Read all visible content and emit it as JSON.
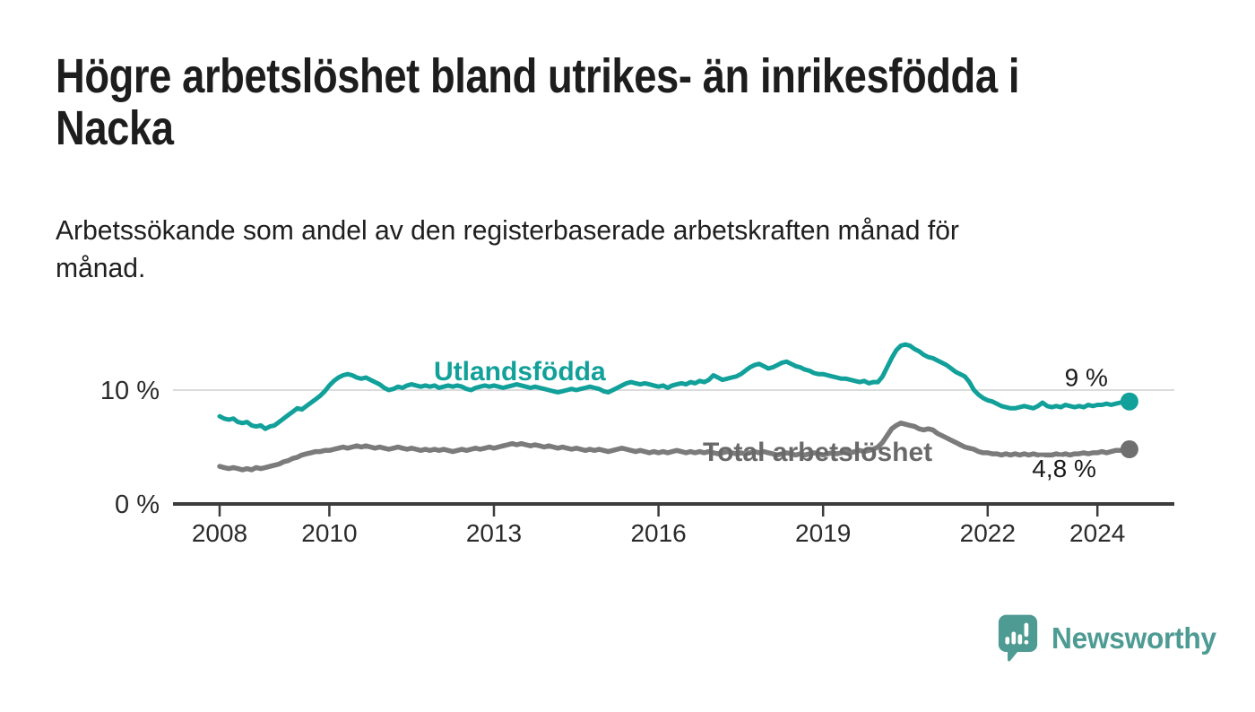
{
  "header": {
    "title": "Högre arbetslöshet bland utrikes- än inrikesfödda i\nNacka",
    "subtitle": "Arbetssökande som andel av den registerbaserade arbetskraften månad för\nmånad."
  },
  "footer": {
    "brand": "Newsworthy"
  },
  "colors": {
    "accent_teal": "#12a09a",
    "series_gray": "#7b7b7b",
    "gray_label": "#696969",
    "gray_dot": "#6f6f6f",
    "logo_teal": "#4d9b93",
    "title_text": "#1d1d1d",
    "axis_text": "#2b2b2b",
    "end_label_text": "#1a1a1a",
    "gridline": "#dcdcdc",
    "axis_line": "#3c3c3c"
  },
  "chart_data": {
    "type": "line",
    "title": "Högre arbetslöshet bland utrikes- än inrikesfödda i Nacka",
    "subtitle": "Arbetssökande som andel av den registerbaserade arbetskraften månad för månad.",
    "frequency": "monthly",
    "start": "2008-01",
    "end": "2024-08",
    "unit": "percent",
    "xlabel": "",
    "ylabel": "",
    "ylim": [
      0,
      15
    ],
    "grid": "single horizontal gridline at 10 %",
    "legend_position": "inline labels next to lines",
    "yticks": [
      {
        "value": 0,
        "label": "0 %"
      },
      {
        "value": 10,
        "label": "10 %"
      }
    ],
    "xticks": [
      2008,
      2010,
      2013,
      2016,
      2019,
      2022,
      2024
    ],
    "series": [
      {
        "name": "Utlandsfödda",
        "color": "#12a09a",
        "end_label": "9 %",
        "end_value": 9.0,
        "values": [
          7.7,
          7.5,
          7.4,
          7.5,
          7.2,
          7.1,
          7.2,
          6.9,
          6.8,
          6.9,
          6.6,
          6.8,
          6.9,
          7.2,
          7.5,
          7.8,
          8.1,
          8.4,
          8.3,
          8.6,
          8.9,
          9.2,
          9.5,
          9.9,
          10.4,
          10.8,
          11.1,
          11.3,
          11.4,
          11.3,
          11.1,
          11.0,
          11.1,
          10.9,
          10.7,
          10.5,
          10.2,
          10.0,
          10.1,
          10.3,
          10.2,
          10.4,
          10.5,
          10.4,
          10.3,
          10.4,
          10.3,
          10.4,
          10.2,
          10.3,
          10.4,
          10.3,
          10.4,
          10.3,
          10.1,
          10.0,
          10.2,
          10.3,
          10.4,
          10.3,
          10.4,
          10.3,
          10.2,
          10.3,
          10.4,
          10.5,
          10.4,
          10.3,
          10.2,
          10.3,
          10.2,
          10.1,
          10.0,
          9.9,
          9.8,
          9.9,
          10.0,
          10.1,
          10.0,
          10.1,
          10.2,
          10.3,
          10.2,
          10.1,
          9.9,
          9.8,
          10.0,
          10.2,
          10.4,
          10.6,
          10.7,
          10.6,
          10.5,
          10.6,
          10.5,
          10.4,
          10.3,
          10.4,
          10.2,
          10.4,
          10.5,
          10.6,
          10.5,
          10.7,
          10.6,
          10.8,
          10.7,
          10.9,
          11.3,
          11.1,
          10.9,
          11.0,
          11.1,
          11.2,
          11.4,
          11.7,
          12.0,
          12.2,
          12.3,
          12.1,
          11.9,
          12.0,
          12.2,
          12.4,
          12.5,
          12.3,
          12.1,
          12.0,
          11.8,
          11.7,
          11.5,
          11.4,
          11.4,
          11.3,
          11.2,
          11.1,
          11.0,
          11.0,
          10.9,
          10.8,
          10.7,
          10.8,
          10.6,
          10.7,
          10.7,
          11.2,
          12.0,
          12.8,
          13.5,
          13.9,
          14.0,
          13.9,
          13.6,
          13.4,
          13.1,
          12.9,
          12.8,
          12.6,
          12.4,
          12.2,
          11.9,
          11.6,
          11.4,
          11.2,
          10.7,
          10.0,
          9.6,
          9.3,
          9.1,
          9.0,
          8.8,
          8.6,
          8.5,
          8.4,
          8.4,
          8.5,
          8.6,
          8.5,
          8.4,
          8.6,
          8.9,
          8.6,
          8.5,
          8.6,
          8.5,
          8.7,
          8.6,
          8.5,
          8.6,
          8.5,
          8.7,
          8.6,
          8.7,
          8.7,
          8.8,
          8.7,
          8.8,
          8.9,
          8.9,
          9.0
        ]
      },
      {
        "name": "Total arbetslöshet",
        "color": "#7b7b7b",
        "end_label": "4,8 %",
        "end_value": 4.8,
        "values": [
          3.3,
          3.2,
          3.1,
          3.2,
          3.1,
          3.0,
          3.1,
          3.0,
          3.2,
          3.1,
          3.2,
          3.3,
          3.4,
          3.5,
          3.7,
          3.8,
          4.0,
          4.1,
          4.3,
          4.4,
          4.5,
          4.6,
          4.6,
          4.7,
          4.7,
          4.8,
          4.9,
          5.0,
          4.9,
          5.0,
          5.1,
          5.0,
          5.1,
          5.0,
          4.9,
          5.0,
          4.9,
          4.8,
          4.9,
          5.0,
          4.9,
          4.8,
          4.9,
          4.8,
          4.7,
          4.8,
          4.7,
          4.8,
          4.7,
          4.8,
          4.7,
          4.6,
          4.7,
          4.8,
          4.7,
          4.8,
          4.9,
          4.8,
          4.9,
          5.0,
          4.9,
          5.0,
          5.1,
          5.2,
          5.3,
          5.2,
          5.3,
          5.2,
          5.1,
          5.2,
          5.1,
          5.0,
          5.1,
          5.0,
          4.9,
          5.0,
          4.9,
          4.8,
          4.9,
          4.8,
          4.7,
          4.8,
          4.7,
          4.8,
          4.7,
          4.6,
          4.7,
          4.8,
          4.9,
          4.8,
          4.7,
          4.6,
          4.7,
          4.6,
          4.5,
          4.6,
          4.5,
          4.6,
          4.5,
          4.6,
          4.7,
          4.6,
          4.5,
          4.6,
          4.5,
          4.6,
          4.5,
          4.6,
          4.5,
          4.4,
          4.5,
          4.6,
          4.5,
          4.4,
          4.5,
          4.4,
          4.5,
          4.6,
          4.5,
          4.6,
          4.5,
          4.4,
          4.3,
          4.4,
          4.5,
          4.4,
          4.3,
          4.4,
          4.3,
          4.4,
          4.5,
          4.4,
          4.3,
          4.4,
          4.5,
          4.4,
          4.5,
          4.6,
          4.5,
          4.6,
          4.7,
          4.6,
          4.7,
          4.8,
          5.0,
          5.4,
          6.0,
          6.6,
          6.9,
          7.1,
          7.0,
          6.9,
          6.8,
          6.6,
          6.5,
          6.6,
          6.5,
          6.2,
          6.0,
          5.8,
          5.6,
          5.4,
          5.2,
          5.0,
          4.9,
          4.8,
          4.6,
          4.5,
          4.5,
          4.4,
          4.4,
          4.3,
          4.4,
          4.3,
          4.4,
          4.3,
          4.4,
          4.3,
          4.4,
          4.3,
          4.3,
          4.3,
          4.3,
          4.4,
          4.3,
          4.4,
          4.3,
          4.4,
          4.4,
          4.5,
          4.4,
          4.5,
          4.5,
          4.6,
          4.5,
          4.6,
          4.7,
          4.7,
          4.8,
          4.8
        ]
      }
    ]
  }
}
